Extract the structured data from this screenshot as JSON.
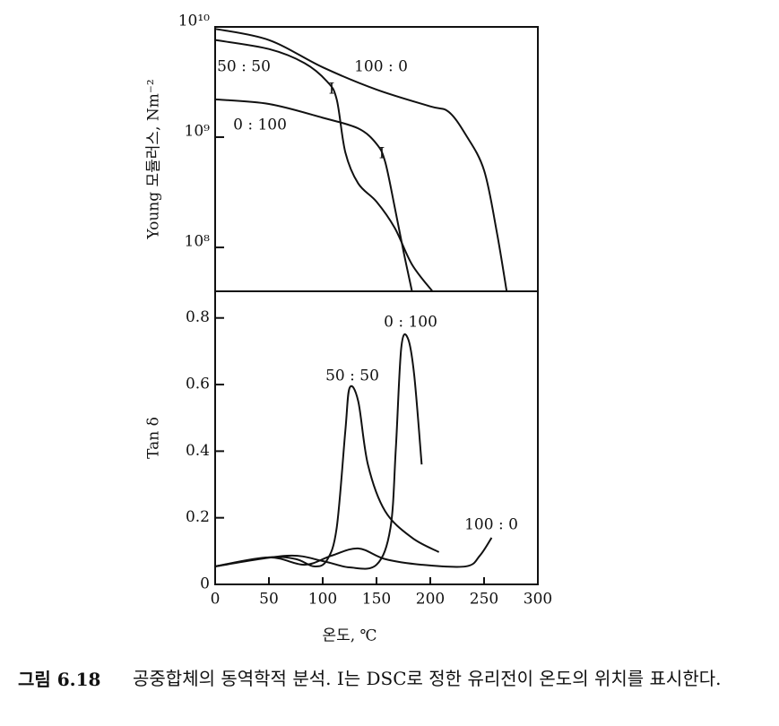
{
  "chart_data": [
    {
      "type": "line",
      "ylabel": "Young 모듈러스, Nm⁻²",
      "log_y": true,
      "xlim": [
        0,
        300
      ],
      "ylim": [
        40000000,
        10000000000
      ],
      "yticks": [
        {
          "value": 100000000,
          "label": "10⁸"
        },
        {
          "value": 1000000000,
          "label": "10⁹"
        },
        {
          "value": 10000000000,
          "label": "10¹⁰"
        }
      ],
      "annotations": [
        "I",
        "I"
      ],
      "series": [
        {
          "name": "50 : 50",
          "color": "#111",
          "x": [
            0,
            50,
            83,
            104,
            113,
            121,
            133,
            150,
            167,
            183,
            202
          ],
          "values": [
            7600000000,
            6300000000,
            4700000000,
            3200000000,
            2200000000,
            730000000,
            380000000,
            260000000,
            150000000,
            70000000,
            40000000
          ]
        },
        {
          "name": "100 : 0",
          "color": "#111",
          "x": [
            0,
            50,
            100,
            150,
            200,
            217,
            233,
            250,
            262,
            271
          ],
          "values": [
            9600000000,
            7600000000,
            4300000000,
            2700000000,
            1900000000,
            1700000000,
            1050000000,
            500000000,
            135000000,
            40000000
          ]
        },
        {
          "name": "0 : 100",
          "color": "#111",
          "x": [
            0,
            50,
            100,
            133,
            150,
            158,
            167,
            175,
            183
          ],
          "values": [
            2200000000,
            2000000000,
            1500000000,
            1200000000,
            870000000,
            600000000,
            230000000,
            93000000,
            40000000
          ]
        }
      ]
    },
    {
      "type": "line",
      "ylabel": "Tan δ",
      "xlabel": "온도, ℃",
      "xlim": [
        0,
        300
      ],
      "xticks": [
        0,
        50,
        100,
        150,
        200,
        250,
        300
      ],
      "ylim": [
        0,
        0.88
      ],
      "yticks": [
        0,
        0.2,
        0.4,
        0.6,
        0.8
      ],
      "series": [
        {
          "name": "50 : 50",
          "color": "#111",
          "x": [
            0,
            50,
            75,
            92,
            104,
            113,
            121,
            125,
            133,
            142,
            158,
            183,
            208
          ],
          "values": [
            0.054,
            0.081,
            0.076,
            0.054,
            0.073,
            0.17,
            0.46,
            0.59,
            0.55,
            0.36,
            0.22,
            0.14,
            0.097
          ]
        },
        {
          "name": "0 : 100",
          "color": "#111",
          "x": [
            0,
            67,
            100,
            125,
            150,
            163,
            168,
            173,
            179,
            185,
            192
          ],
          "values": [
            0.054,
            0.086,
            0.07,
            0.051,
            0.059,
            0.17,
            0.41,
            0.71,
            0.74,
            0.63,
            0.36
          ]
        },
        {
          "name": "100 : 0",
          "color": "#111",
          "x": [
            0,
            50,
            83,
            108,
            133,
            158,
            192,
            233,
            246,
            257
          ],
          "values": [
            0.054,
            0.081,
            0.059,
            0.086,
            0.108,
            0.076,
            0.059,
            0.054,
            0.086,
            0.14
          ]
        }
      ]
    }
  ],
  "caption": {
    "label": "그림 6.18",
    "text": "공중합체의 동역학적 분석. I는 DSC로 정한 유리전이 온도의 위치를 표시한다."
  }
}
